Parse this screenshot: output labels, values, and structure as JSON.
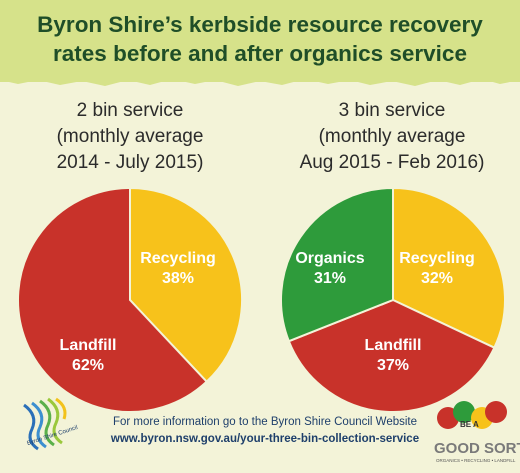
{
  "header": {
    "title_line1": "Byron Shire’s kerbside resource recovery",
    "title_line2": "rates before and after organics service"
  },
  "colors": {
    "landfill": "#c8322a",
    "recycling": "#f7c21b",
    "organics": "#2e9b3b",
    "title": "#1f4e28",
    "header_band": "#d6e28a",
    "background": "#f3f3d8"
  },
  "chart_data": [
    {
      "type": "pie",
      "title": "2 bin service\n(monthly average\n2014 - July 2015)",
      "title_lines": [
        "2 bin service",
        "(monthly average",
        "2014 - July 2015)"
      ],
      "slices": [
        {
          "name": "Recycling",
          "value": 38,
          "label": "38%",
          "color": "#f7c21b"
        },
        {
          "name": "Landfill",
          "value": 62,
          "label": "62%",
          "color": "#c8322a"
        }
      ],
      "start_angle_deg": 0
    },
    {
      "type": "pie",
      "title": "3 bin service\n(monthly average\nAug 2015 - Feb 2016)",
      "title_lines": [
        "3 bin service",
        "(monthly average",
        "Aug 2015 - Feb 2016)"
      ],
      "slices": [
        {
          "name": "Recycling",
          "value": 32,
          "label": "32%",
          "color": "#f7c21b"
        },
        {
          "name": "Landfill",
          "value": 37,
          "label": "37%",
          "color": "#c8322a"
        },
        {
          "name": "Organics",
          "value": 31,
          "label": "31%",
          "color": "#2e9b3b"
        }
      ],
      "start_angle_deg": 0
    }
  ],
  "footer": {
    "line1": "For more information go to the Byron Shire Council Website",
    "line2": "www.byron.nsw.gov.au/your-three-bin-collection-service"
  },
  "logos": {
    "left_text": "Byron Shire Council",
    "right_line1": "BE A",
    "right_line2": "GOOD SORT",
    "right_line3": "ORGANICS • RECYCLING • LANDFILL"
  }
}
